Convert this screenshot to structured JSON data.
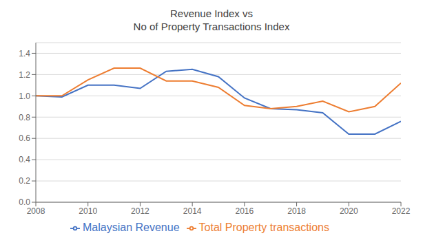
{
  "chart_data": {
    "type": "line",
    "title": "Revenue Index vs\nNo of Property Transactions Index",
    "x": [
      2008,
      2009,
      2010,
      2011,
      2012,
      2013,
      2014,
      2015,
      2016,
      2017,
      2018,
      2019,
      2020,
      2021,
      2022
    ],
    "series": [
      {
        "name": "Malaysian Revenue",
        "color": "#4472C4",
        "values": [
          1.0,
          0.99,
          1.1,
          1.1,
          1.07,
          1.23,
          1.25,
          1.18,
          0.98,
          0.88,
          0.87,
          0.84,
          0.64,
          0.64,
          0.76
        ]
      },
      {
        "name": "Total Property transactions",
        "color": "#ED7D31",
        "values": [
          1.0,
          1.0,
          1.15,
          1.26,
          1.26,
          1.14,
          1.14,
          1.08,
          0.91,
          0.88,
          0.9,
          0.95,
          0.85,
          0.9,
          1.12
        ]
      }
    ],
    "xlim": [
      2008,
      2022
    ],
    "xticks": [
      2008,
      2010,
      2012,
      2014,
      2016,
      2018,
      2020,
      2022
    ],
    "ylim": [
      0.0,
      1.5
    ],
    "yticks": [
      {
        "value": 0,
        "label": "0.0"
      },
      0.2,
      0.4,
      0.6,
      0.8,
      {
        "value": 1,
        "label": "1.0"
      },
      1.2,
      1.4
    ],
    "grid": true,
    "legend": "bottom"
  }
}
